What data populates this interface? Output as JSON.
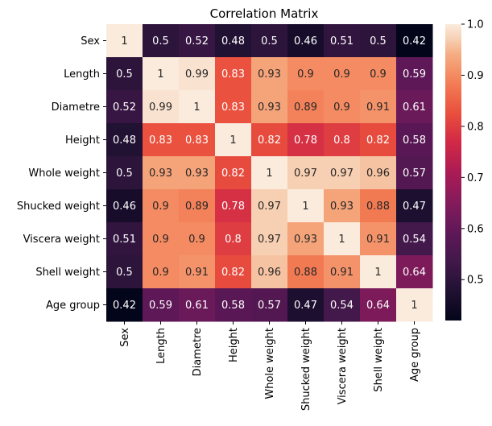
{
  "chart_data": {
    "type": "heatmap",
    "title": "Correlation Matrix",
    "rows": [
      "Sex",
      "Length",
      "Diametre",
      "Height",
      "Whole weight",
      "Shucked weight",
      "Viscera weight",
      "Shell weight",
      "Age group"
    ],
    "columns": [
      "Sex",
      "Length",
      "Diametre",
      "Height",
      "Whole weight",
      "Shucked weight",
      "Viscera weight",
      "Shell weight",
      "Age group"
    ],
    "values": [
      [
        1,
        0.5,
        0.52,
        0.48,
        0.5,
        0.46,
        0.51,
        0.5,
        0.42
      ],
      [
        0.5,
        1,
        0.99,
        0.83,
        0.93,
        0.9,
        0.9,
        0.9,
        0.59
      ],
      [
        0.52,
        0.99,
        1,
        0.83,
        0.93,
        0.89,
        0.9,
        0.91,
        0.61
      ],
      [
        0.48,
        0.83,
        0.83,
        1,
        0.82,
        0.78,
        0.8,
        0.82,
        0.58
      ],
      [
        0.5,
        0.93,
        0.93,
        0.82,
        1,
        0.97,
        0.97,
        0.96,
        0.57
      ],
      [
        0.46,
        0.9,
        0.89,
        0.78,
        0.97,
        1,
        0.93,
        0.88,
        0.47
      ],
      [
        0.51,
        0.9,
        0.9,
        0.8,
        0.97,
        0.93,
        1,
        0.91,
        0.54
      ],
      [
        0.5,
        0.9,
        0.91,
        0.82,
        0.96,
        0.88,
        0.91,
        1,
        0.64
      ],
      [
        0.42,
        0.59,
        0.61,
        0.58,
        0.57,
        0.47,
        0.54,
        0.64,
        1
      ]
    ],
    "annotations": true,
    "colormap": "rocket",
    "vmin": 0.42,
    "vmax": 1.0,
    "colorbar": {
      "ticks": [
        1.0,
        0.9,
        0.8,
        0.7,
        0.6,
        0.5
      ],
      "tick_labels": [
        "1.0",
        "0.9",
        "0.8",
        "0.7",
        "0.6",
        "0.5"
      ],
      "placement": "right"
    },
    "grid": false
  }
}
